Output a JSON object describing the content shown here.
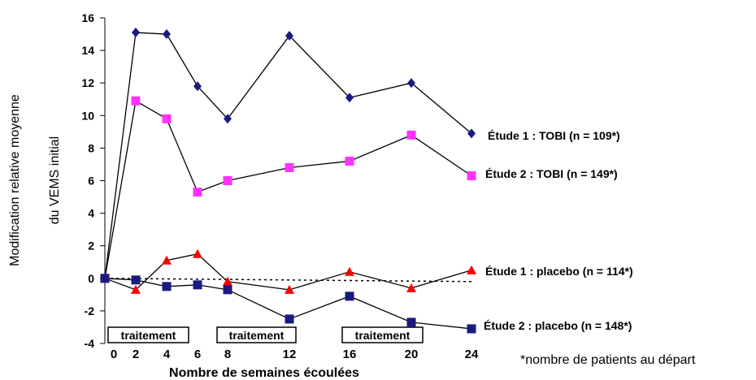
{
  "chart_data": {
    "type": "line",
    "xlabel": "Nombre de semaines écoulées",
    "ylabel": [
      "Modification relative moyenne",
      "du VEMS initial"
    ],
    "x": [
      0,
      2,
      4,
      6,
      8,
      12,
      16,
      20,
      24
    ],
    "x_tick_labels": [
      "0",
      "2",
      "4",
      "6",
      "8",
      "12",
      "16",
      "20",
      "24"
    ],
    "ylim": [
      -4,
      16
    ],
    "y_ticks": [
      "-4",
      "-2",
      "0",
      "2",
      "4",
      "6",
      "8",
      "10",
      "12",
      "14",
      "16"
    ],
    "grid": false,
    "legend": "labels at right end of each series",
    "series": [
      {
        "name": "Étude 1 : TOBI (n = 109*)",
        "marker": "diamond",
        "color": "#1a1a80",
        "values": [
          0,
          15.1,
          15.0,
          11.8,
          9.8,
          14.9,
          11.1,
          12.0,
          8.9
        ]
      },
      {
        "name": "Étude 2 : TOBI (n = 149*)",
        "marker": "square",
        "color": "#ff33ff",
        "values": [
          0,
          10.9,
          9.8,
          5.3,
          6.0,
          6.8,
          7.2,
          8.8,
          6.3
        ]
      },
      {
        "name": "Étude 1 : placebo (n = 114*)",
        "marker": "triangle",
        "color": "#ff0000",
        "values": [
          0,
          -0.7,
          1.1,
          1.5,
          -0.2,
          -0.7,
          0.4,
          -0.6,
          0.5
        ]
      },
      {
        "name": "Étude 2 : placebo (n = 148*)",
        "marker": "square",
        "color": "#1a1a80",
        "values": [
          0,
          -0.1,
          -0.5,
          -0.4,
          -0.7,
          -2.5,
          -1.1,
          -2.7,
          -3.1
        ]
      }
    ],
    "dotted_line": {
      "from": [
        0,
        0
      ],
      "to": [
        24,
        -0.2
      ]
    },
    "treatment_periods": [
      {
        "label": "traitement",
        "x0": 0,
        "x1": 6
      },
      {
        "label": "traitement",
        "x0": 8,
        "x1": 16
      },
      {
        "label": "traitement",
        "x0": 16,
        "x1": 24
      }
    ],
    "footnote": "*nombre de patients au départ"
  }
}
